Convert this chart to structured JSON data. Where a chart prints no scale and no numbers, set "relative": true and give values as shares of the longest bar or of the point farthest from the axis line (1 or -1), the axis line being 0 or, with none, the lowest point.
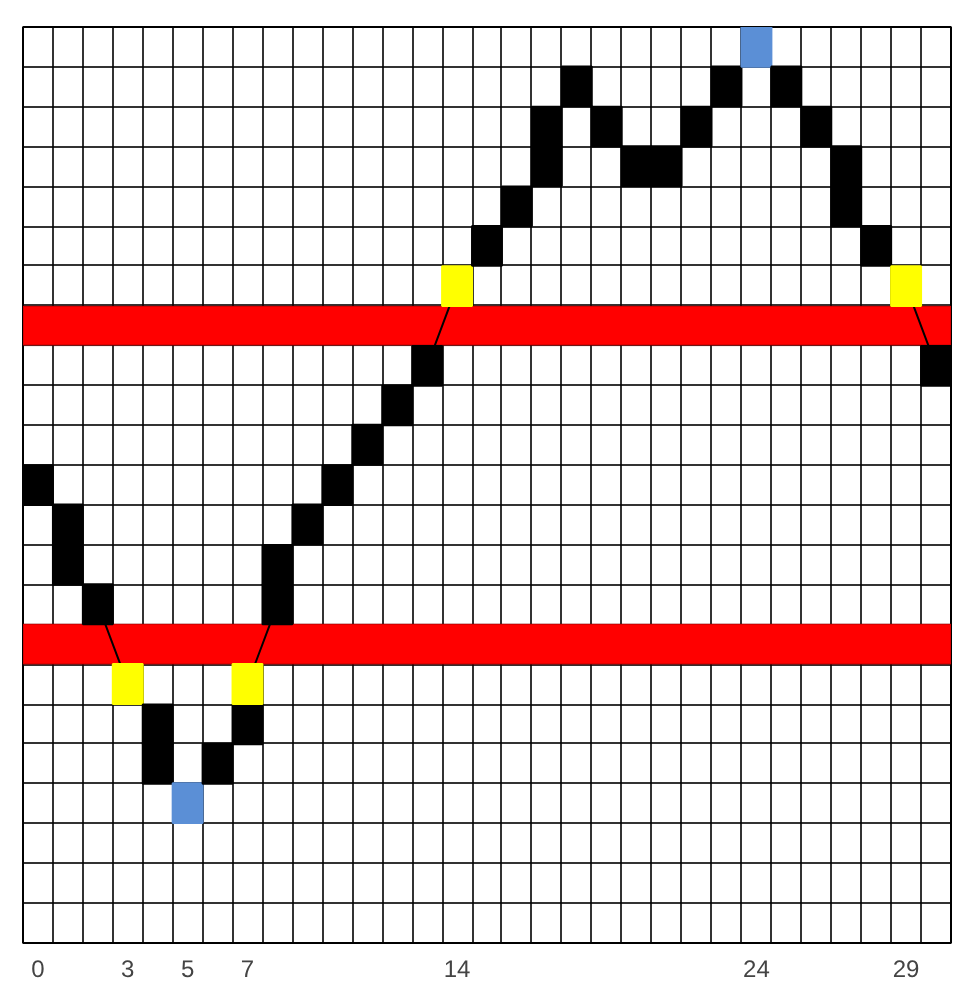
{
  "chart_data": {
    "type": "line",
    "line_style": "solid",
    "relative": true,
    "marker": "square",
    "grid": true,
    "tick_labels": "x",
    "xlim": [
      -0.5,
      30.5
    ],
    "xticks": [
      0,
      3,
      5,
      7,
      14,
      24,
      29
    ],
    "series": [
      {
        "x": [
          0,
          1,
          1,
          2,
          3,
          4,
          4,
          5,
          6,
          7,
          7,
          8,
          8,
          9,
          10,
          11,
          12,
          13,
          14,
          15,
          16,
          17,
          17,
          18,
          19,
          20,
          21,
          22,
          23,
          24,
          25,
          26,
          27,
          27,
          28,
          29,
          30
        ],
        "values": [
          0.511,
          0.467,
          0.422,
          0.378,
          0.289,
          0.244,
          0.2,
          0.156,
          0.2,
          0.244,
          0.289,
          0.378,
          0.422,
          0.467,
          0.511,
          0.556,
          0.6,
          0.644,
          0.733,
          0.778,
          0.822,
          0.867,
          0.911,
          0.956,
          0.911,
          0.867,
          0.867,
          0.911,
          0.956,
          1,
          0.956,
          0.911,
          0.867,
          0.822,
          0.778,
          0.733,
          0.644
        ],
        "colors": [
          "#000000",
          "#000000",
          "#000000",
          "#000000",
          "#ffff00",
          "#000000",
          "#000000",
          "#5b8fd6",
          "#000000",
          "#000000",
          "#ffff00",
          "#000000",
          "#000000",
          "#000000",
          "#000000",
          "#000000",
          "#000000",
          "#000000",
          "#ffff00",
          "#000000",
          "#000000",
          "#000000",
          "#000000",
          "#000000",
          "#000000",
          "#000000",
          "#000000",
          "#000000",
          "#000000",
          "#5b8fd6",
          "#000000",
          "#000000",
          "#000000",
          "#000000",
          "#000000",
          "#ffff00",
          "#000000"
        ]
      }
    ],
    "bands": [
      {
        "axis": "y",
        "from": 0.667,
        "to": 0.711,
        "color": "#ff0000"
      },
      {
        "axis": "y",
        "from": 0.311,
        "to": 0.356,
        "color": "#ff0000"
      }
    ]
  }
}
